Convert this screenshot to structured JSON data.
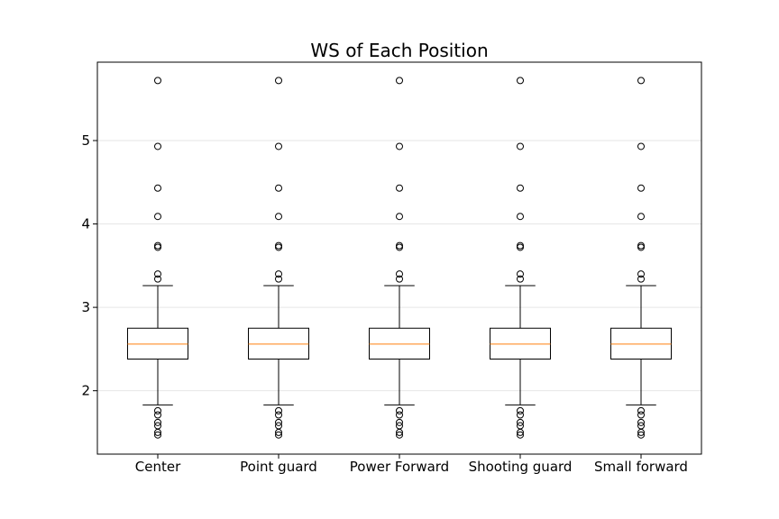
{
  "chart_data": {
    "type": "box",
    "title": "WS of Each Position",
    "xlabel": "",
    "ylabel": "",
    "ylim": [
      1.24,
      5.94
    ],
    "yticks": [
      2,
      3,
      4,
      5
    ],
    "grid": "horizontal",
    "categories": [
      "Center",
      "Point guard",
      "Power Forward",
      "Shooting guard",
      "Small forward"
    ],
    "boxes": [
      {
        "q1": 2.38,
        "median": 2.56,
        "q3": 2.75,
        "whisker_low": 1.83,
        "whisker_high": 3.26,
        "outliers": [
          5.72,
          4.93,
          4.43,
          4.09,
          3.74,
          3.72,
          3.4,
          3.34,
          1.76,
          1.71,
          1.62,
          1.58,
          1.5,
          1.47
        ]
      },
      {
        "q1": 2.38,
        "median": 2.56,
        "q3": 2.75,
        "whisker_low": 1.83,
        "whisker_high": 3.26,
        "outliers": [
          5.72,
          4.93,
          4.43,
          4.09,
          3.74,
          3.72,
          3.4,
          3.34,
          1.76,
          1.71,
          1.62,
          1.58,
          1.5,
          1.47
        ]
      },
      {
        "q1": 2.38,
        "median": 2.56,
        "q3": 2.75,
        "whisker_low": 1.83,
        "whisker_high": 3.26,
        "outliers": [
          5.72,
          4.93,
          4.43,
          4.09,
          3.74,
          3.72,
          3.4,
          3.34,
          1.76,
          1.71,
          1.62,
          1.58,
          1.5,
          1.47
        ]
      },
      {
        "q1": 2.38,
        "median": 2.56,
        "q3": 2.75,
        "whisker_low": 1.83,
        "whisker_high": 3.26,
        "outliers": [
          5.72,
          4.93,
          4.43,
          4.09,
          3.74,
          3.72,
          3.4,
          3.34,
          1.76,
          1.71,
          1.62,
          1.58,
          1.5,
          1.47
        ]
      },
      {
        "q1": 2.38,
        "median": 2.56,
        "q3": 2.75,
        "whisker_low": 1.83,
        "whisker_high": 3.26,
        "outliers": [
          5.72,
          4.93,
          4.43,
          4.09,
          3.74,
          3.72,
          3.4,
          3.34,
          1.76,
          1.71,
          1.62,
          1.58,
          1.5,
          1.47
        ]
      }
    ],
    "colors": {
      "median": "#ff7f0e",
      "box": "#000000",
      "grid": "#e6e6e6"
    }
  }
}
